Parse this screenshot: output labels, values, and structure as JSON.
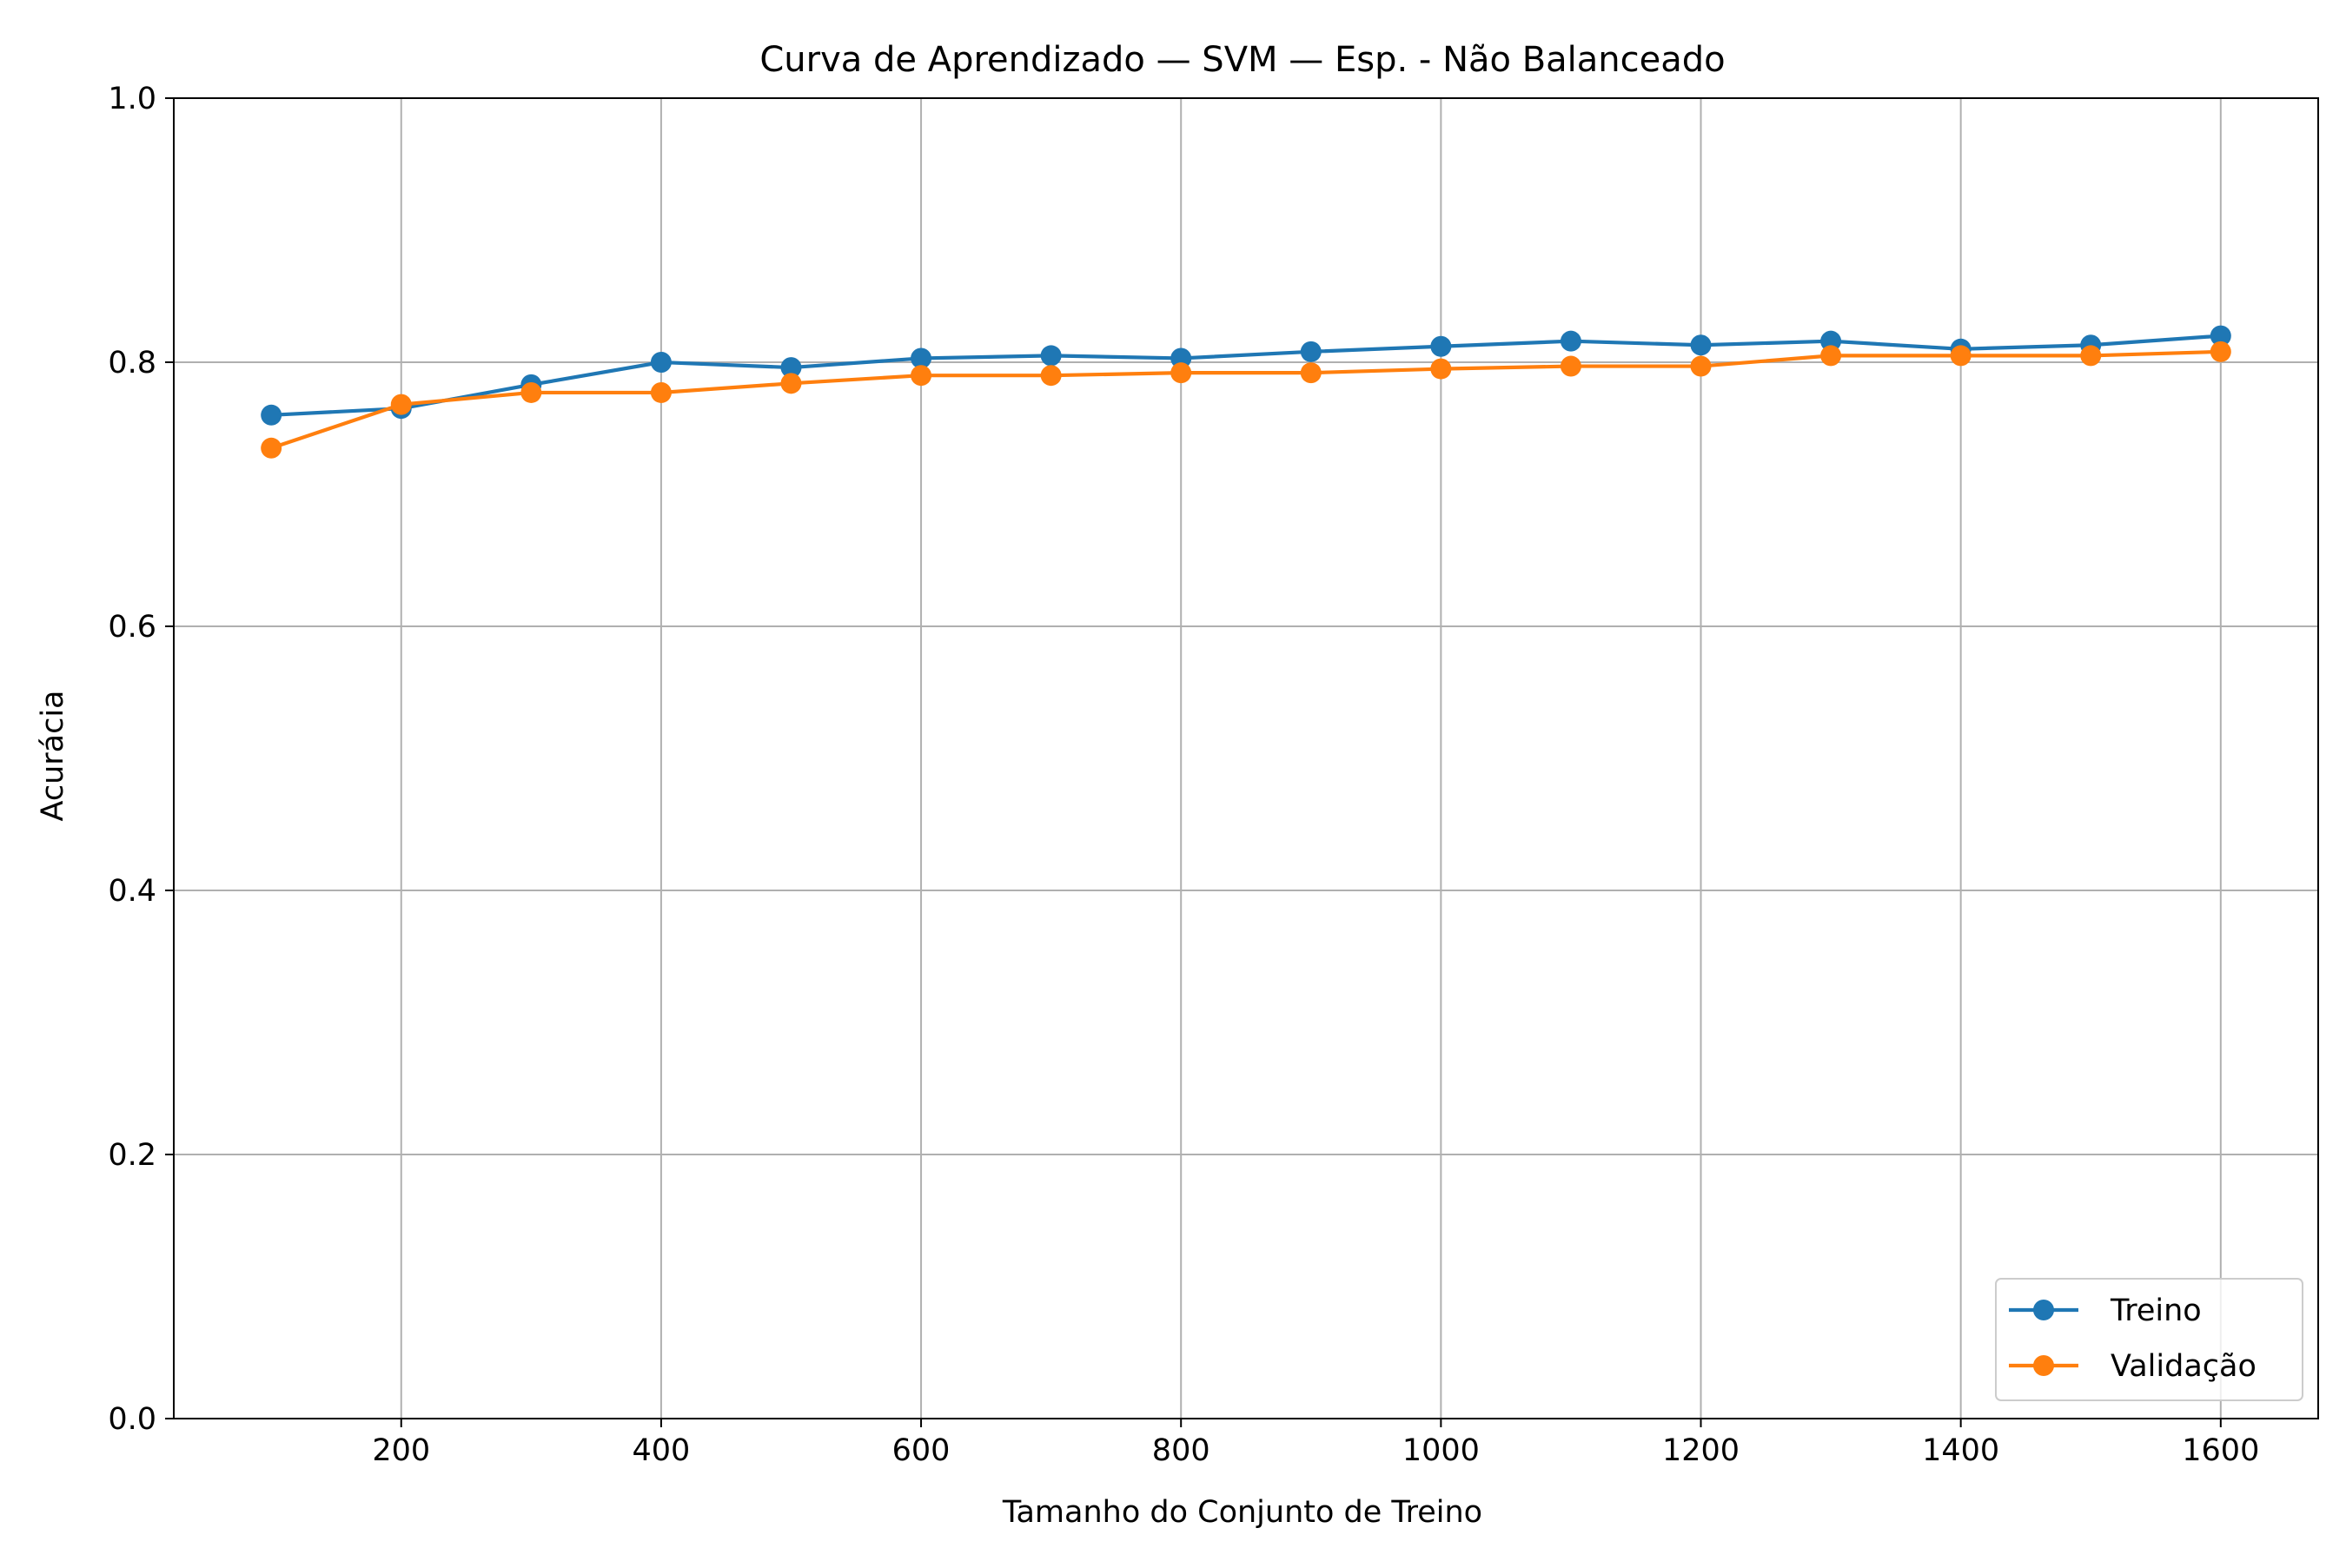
{
  "chart_data": {
    "type": "line",
    "title": "Curva de Aprendizado — SVM — Esp. - Não Balanceado",
    "xlabel": "Tamanho do Conjunto de Treino",
    "ylabel": "Acurácia",
    "xlim": [
      25,
      1675
    ],
    "ylim": [
      0.0,
      1.0
    ],
    "xticks": [
      200,
      400,
      600,
      800,
      1000,
      1200,
      1400,
      1600
    ],
    "xtick_labels": [
      "200",
      "400",
      "600",
      "800",
      "1000",
      "1200",
      "1400",
      "1600"
    ],
    "yticks": [
      0.0,
      0.2,
      0.4,
      0.6,
      0.8,
      1.0
    ],
    "ytick_labels": [
      "0.0",
      "0.2",
      "0.4",
      "0.6",
      "0.8",
      "1.0"
    ],
    "grid": true,
    "legend_position": "lower-right",
    "x": [
      100,
      200,
      300,
      400,
      500,
      600,
      700,
      800,
      900,
      1000,
      1100,
      1200,
      1300,
      1400,
      1500,
      1600
    ],
    "series": [
      {
        "name": "Treino",
        "color": "#1f77b4",
        "marker": "circle",
        "values": [
          0.76,
          0.765,
          0.783,
          0.8,
          0.796,
          0.803,
          0.805,
          0.803,
          0.808,
          0.812,
          0.816,
          0.813,
          0.816,
          0.81,
          0.813,
          0.82
        ]
      },
      {
        "name": "Validação",
        "color": "#ff7f0e",
        "marker": "circle",
        "values": [
          0.735,
          0.768,
          0.777,
          0.777,
          0.784,
          0.79,
          0.79,
          0.792,
          0.792,
          0.795,
          0.797,
          0.797,
          0.805,
          0.805,
          0.805,
          0.808
        ]
      }
    ]
  }
}
